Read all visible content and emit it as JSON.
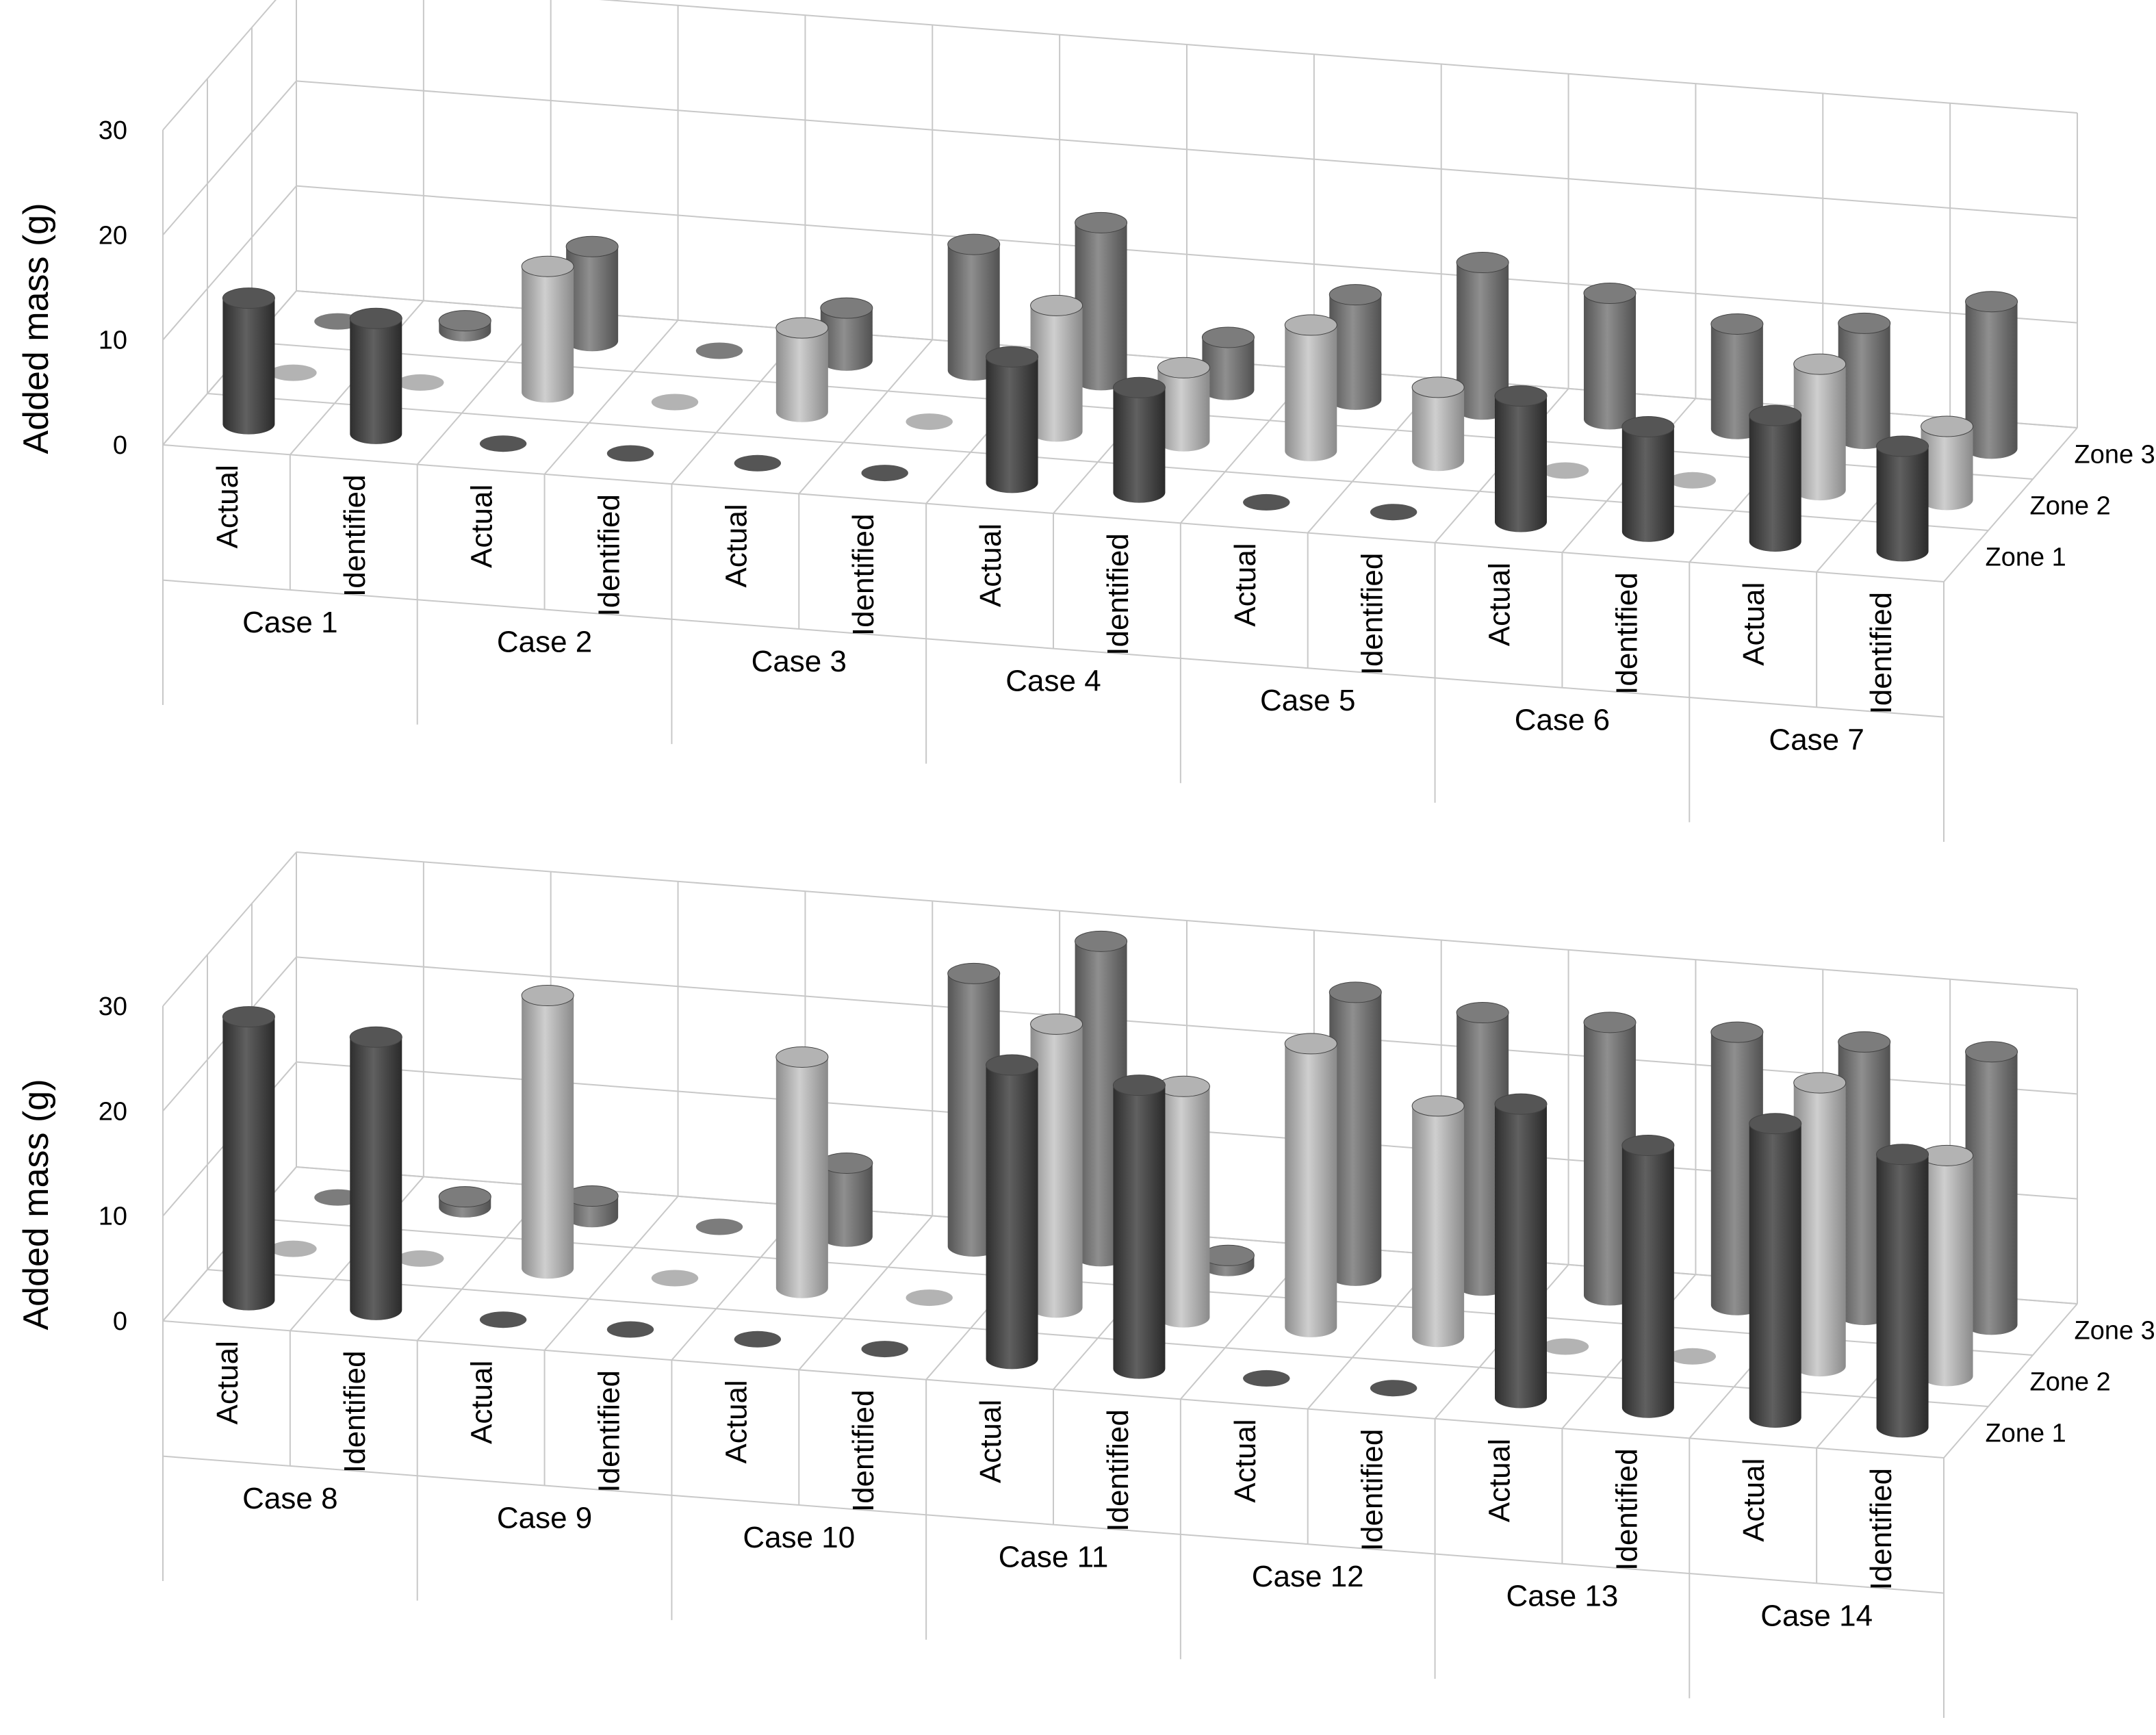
{
  "chart_data": [
    {
      "type": "bar",
      "style": "3d-cylinder",
      "ylabel": "Added mass (g)",
      "ylim": [
        0,
        30
      ],
      "yticks": [
        0,
        10,
        20,
        30
      ],
      "grid": true,
      "groups": [
        "Case 1",
        "Case 2",
        "Case 3",
        "Case 4",
        "Case 5",
        "Case 6",
        "Case 7"
      ],
      "categories": [
        "Actual",
        "Identified"
      ],
      "depth_labels": [
        "Zone 1",
        "Zone 2",
        "Zone 3"
      ],
      "colors": {
        "Zone 1": "#555555",
        "Zone 2": "#b3b3b3",
        "Zone 3": "#7c7c7c"
      },
      "series": [
        {
          "name": "Zone 1",
          "values": [
            [
              12,
              11
            ],
            [
              0,
              0
            ],
            [
              0,
              0
            ],
            [
              12,
              10
            ],
            [
              0,
              0
            ],
            [
              12,
              10
            ],
            [
              12,
              10
            ]
          ]
        },
        {
          "name": "Zone 2",
          "values": [
            [
              0,
              0
            ],
            [
              12,
              0
            ],
            [
              8,
              0
            ],
            [
              12,
              7
            ],
            [
              12,
              7
            ],
            [
              0,
              0
            ],
            [
              12,
              7
            ]
          ]
        },
        {
          "name": "Zone 3",
          "values": [
            [
              0,
              1
            ],
            [
              9,
              0
            ],
            [
              5,
              12
            ],
            [
              15,
              5
            ],
            [
              10,
              14
            ],
            [
              12,
              10
            ],
            [
              11,
              14
            ]
          ]
        }
      ]
    },
    {
      "type": "bar",
      "style": "3d-cylinder",
      "ylabel": "Added mass (g)",
      "ylim": [
        0,
        30
      ],
      "yticks": [
        0,
        10,
        20,
        30
      ],
      "grid": true,
      "groups": [
        "Case 8",
        "Case 9",
        "Case 10",
        "Case 11",
        "Case 12",
        "Case 13",
        "Case 14"
      ],
      "categories": [
        "Actual",
        "Identified"
      ],
      "depth_labels": [
        "Zone 1",
        "Zone 2",
        "Zone 3"
      ],
      "colors": {
        "Zone 1": "#555555",
        "Zone 2": "#b3b3b3",
        "Zone 3": "#7c7c7c"
      },
      "series": [
        {
          "name": "Zone 1",
          "values": [
            [
              27,
              26
            ],
            [
              0,
              0
            ],
            [
              0,
              0
            ],
            [
              28,
              27
            ],
            [
              0,
              0
            ],
            [
              28,
              25
            ],
            [
              28,
              26
            ]
          ]
        },
        {
          "name": "Zone 2",
          "values": [
            [
              0,
              0
            ],
            [
              26,
              0
            ],
            [
              22,
              0
            ],
            [
              27,
              22
            ],
            [
              27,
              22
            ],
            [
              0,
              0
            ],
            [
              27,
              21
            ]
          ]
        },
        {
          "name": "Zone 3",
          "values": [
            [
              0,
              1
            ],
            [
              2,
              0
            ],
            [
              7,
              26
            ],
            [
              30,
              1
            ],
            [
              27,
              26
            ],
            [
              26,
              26
            ],
            [
              26,
              26
            ]
          ]
        }
      ]
    }
  ]
}
